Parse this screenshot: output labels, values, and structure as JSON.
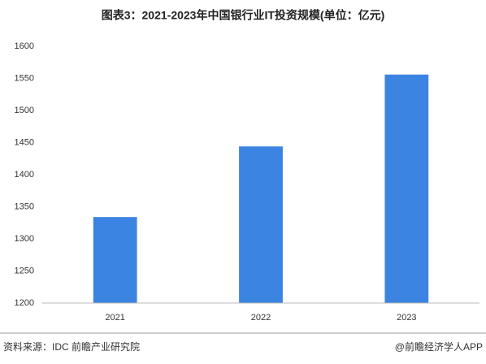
{
  "chart_data": {
    "type": "bar",
    "title": "图表3：2021-2023年中国银行业IT投资规模(单位：亿元)",
    "categories": [
      "2021",
      "2022",
      "2023"
    ],
    "values": [
      1334,
      1444,
      1556
    ],
    "color": "#3b84e2",
    "ylim": [
      1200,
      1600
    ],
    "yticks": [
      1200,
      1250,
      1300,
      1350,
      1400,
      1450,
      1500,
      1550,
      1600
    ],
    "grid": false,
    "source": "资料来源：IDC 前瞻产业研究院",
    "credit": "@前瞻经济学人APP"
  }
}
